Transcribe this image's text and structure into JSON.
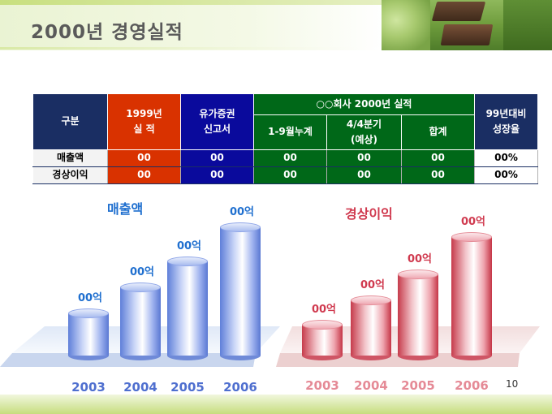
{
  "slide": {
    "title": "2000년 경영실적",
    "page_number": "10"
  },
  "table": {
    "header": {
      "category": "구분",
      "y1999_line1": "1999년",
      "y1999_line2": "실    적",
      "securities_line1": "유가증권",
      "securities_line2": "신고서",
      "company2000": "○○회사 2000년 실적",
      "cum_1_9": "1-9월누계",
      "q4_line1": "4/4분기",
      "q4_line2": "(예상)",
      "total": "합계",
      "growth_line1": "99년대비",
      "growth_line2": "성장율"
    },
    "rows": [
      {
        "label": "매출액",
        "y1999": "00",
        "securities": "00",
        "cum_1_9": "00",
        "q4": "00",
        "total": "00",
        "growth": "00%"
      },
      {
        "label": "경상이익",
        "y1999": "00",
        "securities": "00",
        "cum_1_9": "00",
        "q4": "00",
        "total": "00",
        "growth": "00%"
      }
    ]
  },
  "colors": {
    "navy_header": "#1a2e63",
    "red_header": "#d93200",
    "blue_header": "#0a0a9c",
    "green_header": "#006818",
    "sales_accent": "#1f6fcf",
    "profit_accent": "#d03a4f"
  },
  "chart_data": [
    {
      "type": "bar",
      "title": "매출액",
      "categories": [
        "2003",
        "2004",
        "2005",
        "2006"
      ],
      "value_labels": [
        "00억",
        "00억",
        "00억",
        "00억"
      ],
      "relative_level": [
        0.29,
        0.45,
        0.61,
        0.82
      ]
    },
    {
      "type": "bar",
      "title": "경상이익",
      "categories": [
        "2003",
        "2004",
        "2005",
        "2006"
      ],
      "value_labels": [
        "00억",
        "00억",
        "00억",
        "00억"
      ],
      "relative_level": [
        0.23,
        0.39,
        0.56,
        0.8
      ]
    }
  ]
}
